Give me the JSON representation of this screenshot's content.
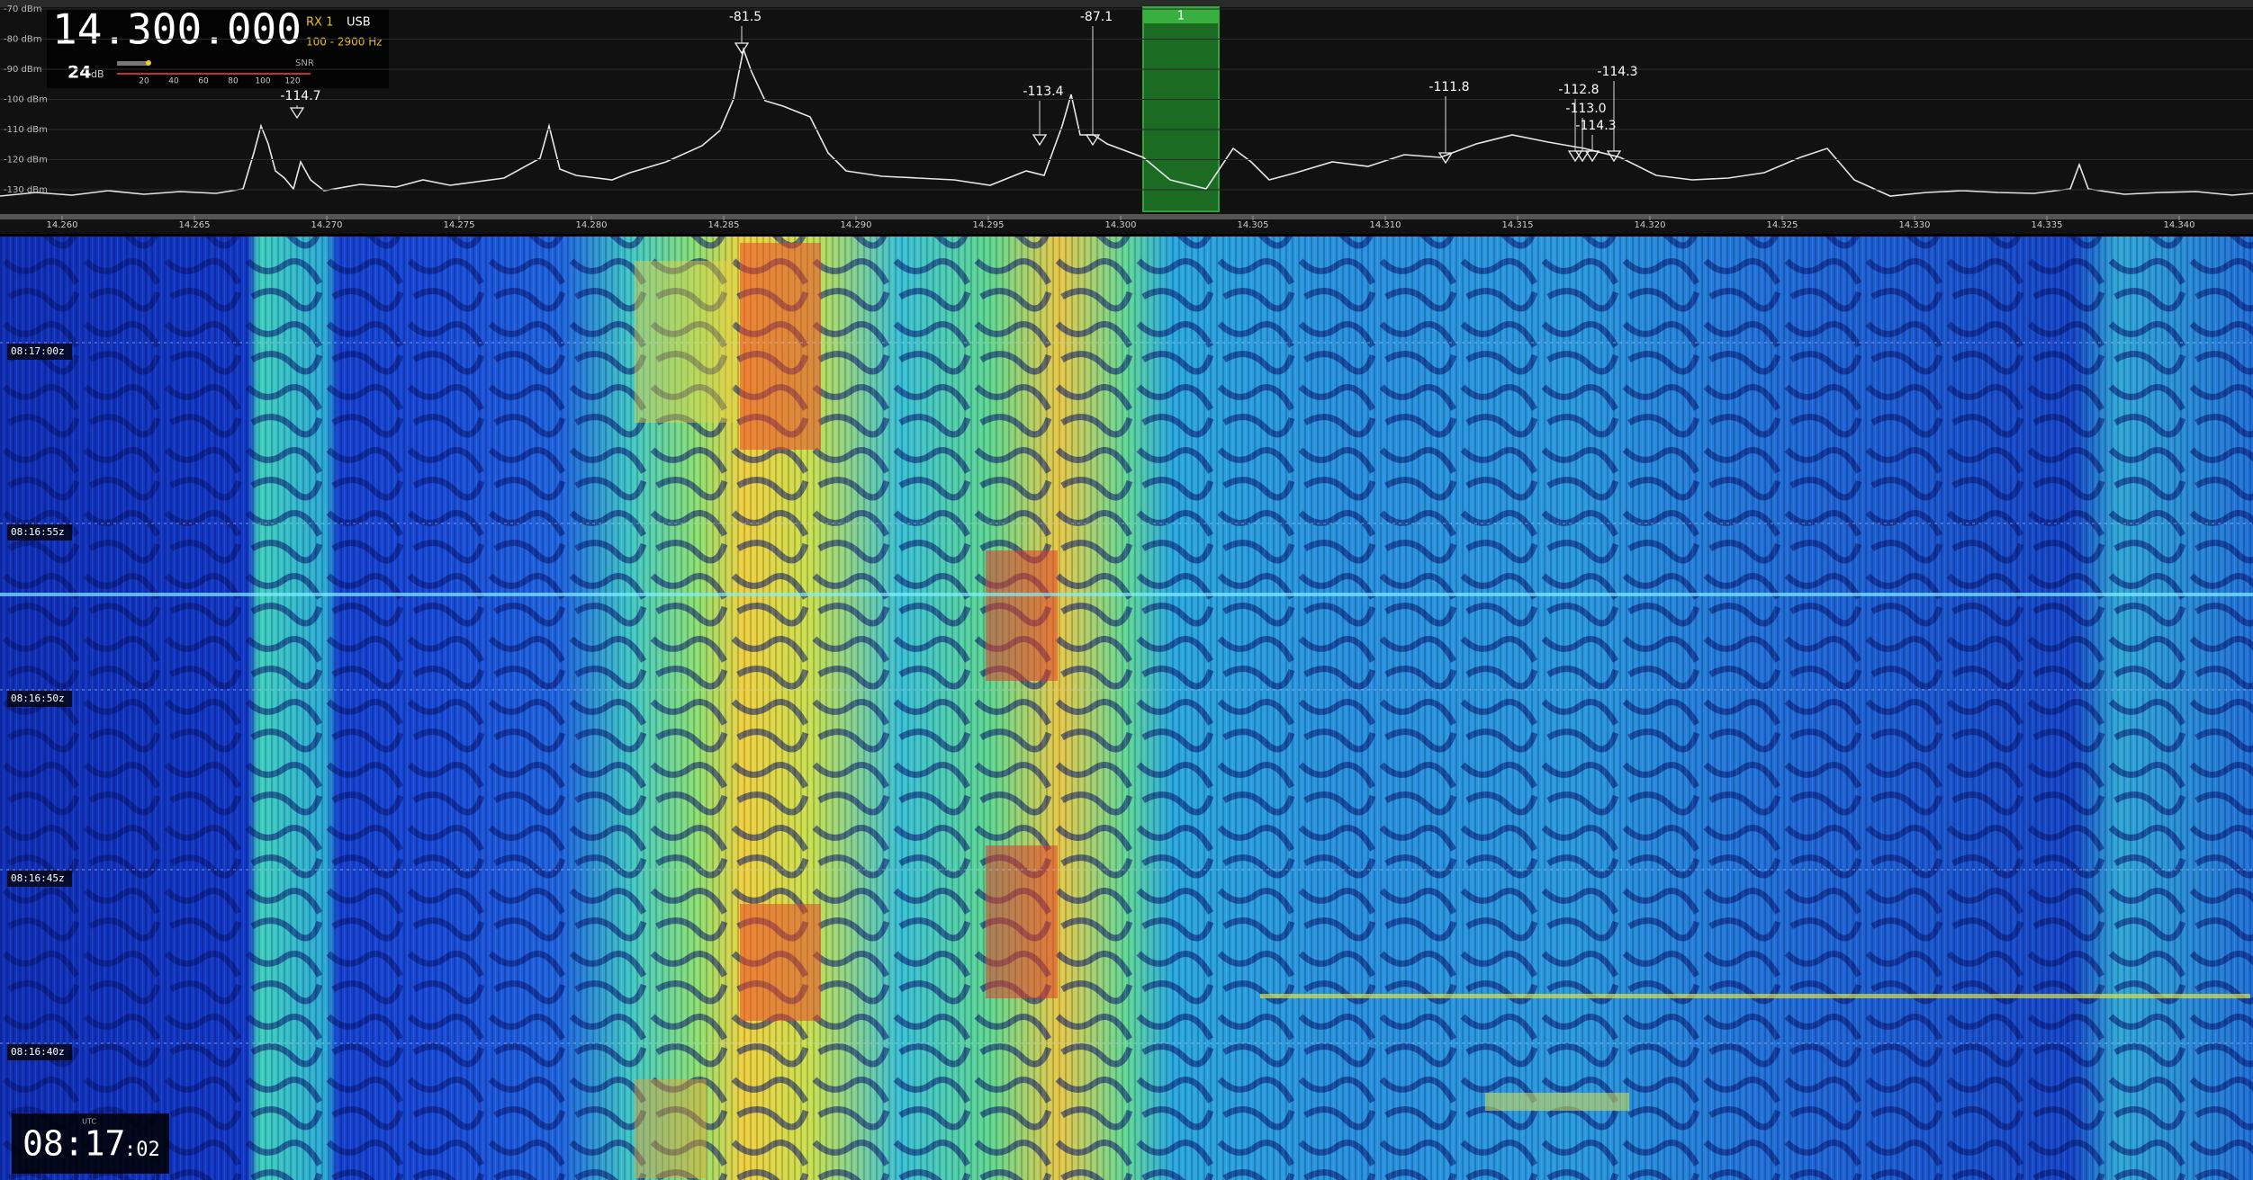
{
  "header": {
    "frequency": "14.300.000",
    "receiver": "RX 1",
    "mode": "USB",
    "bandwidth": "100 - 2900 Hz",
    "snr_value": "24",
    "snr_unit": "dB",
    "snr_label": "SNR",
    "snr_scale": [
      "20",
      "40",
      "60",
      "80",
      "100",
      "120"
    ]
  },
  "spectrum": {
    "db_labels": [
      "-70 dBm",
      "-80 dBm",
      "-90 dBm",
      "-100 dBm",
      "-110 dBm",
      "-120 dBm",
      "-130 dBm"
    ],
    "peaks": [
      "-81.5",
      "-87.1",
      "-114.7",
      "-113.4",
      "-111.8",
      "-112.8",
      "-113.0",
      "-114.3",
      "-114.3"
    ],
    "passband_label": "1"
  },
  "axis": {
    "freq_labels": [
      "14.260",
      "14.265",
      "14.270",
      "14.275",
      "14.280",
      "14.285",
      "14.290",
      "14.295",
      "14.300",
      "14.305",
      "14.310",
      "14.315",
      "14.320",
      "14.325",
      "14.330",
      "14.335",
      "14.340"
    ]
  },
  "waterfall": {
    "time_labels": [
      "08:17:00z",
      "08:16:55z",
      "08:16:50z",
      "08:16:45z",
      "08:16:40z"
    ]
  },
  "clock": {
    "zone": "UTC",
    "time": "08:17",
    "seconds": ":02"
  }
}
